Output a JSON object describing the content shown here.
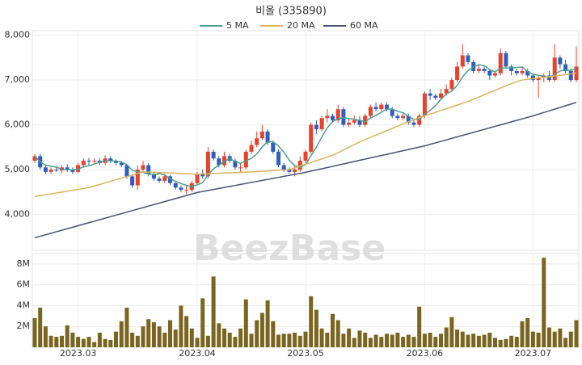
{
  "chart_data": [
    {
      "type": "candlestick",
      "title": "비올 (335890)",
      "watermark": "BeezBase",
      "up_color": "#e8412c",
      "down_color": "#2e5fbf",
      "ylim": [
        3200,
        8100
      ],
      "yticks": [
        {
          "value": 4000,
          "label": "4,000"
        },
        {
          "value": 5000,
          "label": "5,000"
        },
        {
          "value": 6000,
          "label": "6,000"
        },
        {
          "value": 7000,
          "label": "7,000"
        },
        {
          "value": 8000,
          "label": "8,000"
        }
      ],
      "open": [
        5200,
        5300,
        5050,
        4950,
        5000,
        4980,
        5050,
        5000,
        4950,
        5100,
        5200,
        5180,
        5200,
        5150,
        5250,
        5200,
        5150,
        5100,
        4850,
        4650,
        5000,
        5100,
        4900,
        4800,
        4750,
        4850,
        4700,
        4600,
        4550,
        4550,
        4700,
        4900,
        4850,
        5400,
        5250,
        5100,
        5300,
        5200,
        5050,
        5050,
        5400,
        5550,
        5700,
        5850,
        5600,
        5400,
        5100,
        5000,
        4950,
        5000,
        5200,
        5400,
        6000,
        5900,
        6150,
        6200,
        6100,
        6350,
        6000,
        6050,
        6100,
        6000,
        6200,
        6400,
        6350,
        6450,
        6350,
        6200,
        6150,
        6200,
        6050,
        6000,
        6200,
        6700,
        6650,
        6600,
        6700,
        6800,
        7000,
        7300,
        7550,
        7400,
        7200,
        7250,
        7200,
        7100,
        7150,
        7600,
        7300,
        7200,
        7150,
        7200,
        7100,
        7000,
        7050,
        7100,
        7000,
        7500,
        7350,
        7200,
        7000
      ],
      "high": [
        5350,
        5350,
        5100,
        5050,
        5080,
        5100,
        5120,
        5050,
        5150,
        5250,
        5260,
        5250,
        5260,
        5320,
        5300,
        5230,
        5200,
        5130,
        4900,
        5100,
        5200,
        5150,
        4950,
        4850,
        4900,
        4880,
        4750,
        4650,
        4650,
        4750,
        4950,
        5000,
        5500,
        5450,
        5300,
        5400,
        5350,
        5250,
        5150,
        5450,
        5650,
        5850,
        6000,
        5900,
        5650,
        5450,
        5150,
        5050,
        5100,
        5300,
        5450,
        6050,
        6100,
        6200,
        6350,
        6250,
        6450,
        6400,
        6150,
        6200,
        6200,
        6250,
        6450,
        6500,
        6500,
        6500,
        6400,
        6250,
        6250,
        6250,
        6100,
        6250,
        6750,
        6800,
        6700,
        6800,
        6900,
        7050,
        7400,
        7800,
        7600,
        7450,
        7350,
        7300,
        7250,
        7200,
        7700,
        7650,
        7350,
        7250,
        7300,
        7250,
        7150,
        7100,
        7150,
        7200,
        7800,
        7550,
        7450,
        7250,
        7750
      ],
      "low": [
        5150,
        5000,
        4900,
        4900,
        4950,
        4920,
        4950,
        4900,
        4920,
        5050,
        5100,
        5120,
        5100,
        5100,
        5150,
        5100,
        5050,
        4800,
        4600,
        4550,
        4950,
        4850,
        4750,
        4700,
        4700,
        4650,
        4550,
        4500,
        4450,
        4500,
        4650,
        4800,
        4800,
        5200,
        5050,
        5050,
        5150,
        5000,
        4950,
        5000,
        5350,
        5500,
        5650,
        5550,
        5350,
        5050,
        4950,
        4900,
        4850,
        4950,
        5150,
        5350,
        5800,
        5850,
        6050,
        6050,
        6050,
        5950,
        5950,
        6000,
        5950,
        5950,
        6150,
        6300,
        6300,
        6300,
        6150,
        6100,
        6100,
        6000,
        5950,
        5950,
        6150,
        6550,
        6550,
        6550,
        6650,
        6750,
        6950,
        7250,
        7350,
        7150,
        7150,
        7150,
        7000,
        7050,
        7100,
        7250,
        7100,
        7100,
        7100,
        7050,
        6950,
        6600,
        6950,
        6950,
        6950,
        7250,
        7150,
        6950,
        6950
      ],
      "close": [
        5300,
        5050,
        4950,
        5000,
        4980,
        5050,
        5000,
        4950,
        5100,
        5200,
        5180,
        5200,
        5150,
        5250,
        5200,
        5150,
        5100,
        4850,
        4650,
        5000,
        5100,
        4900,
        4800,
        4750,
        4850,
        4700,
        4600,
        4550,
        4550,
        4700,
        4900,
        4850,
        5400,
        5250,
        5100,
        5300,
        5200,
        5050,
        5050,
        5400,
        5550,
        5700,
        5850,
        5600,
        5400,
        5100,
        5000,
        4950,
        5000,
        5200,
        5400,
        6000,
        5900,
        6150,
        6200,
        6100,
        6350,
        6000,
        6050,
        6100,
        6000,
        6200,
        6400,
        6350,
        6450,
        6350,
        6200,
        6150,
        6200,
        6050,
        6000,
        6200,
        6700,
        6650,
        6600,
        6700,
        6800,
        7000,
        7300,
        7550,
        7400,
        7200,
        7250,
        7200,
        7100,
        7150,
        7600,
        7300,
        7200,
        7150,
        7200,
        7100,
        7000,
        7050,
        7100,
        7000,
        7500,
        7350,
        7200,
        7000,
        7300
      ],
      "series": [
        {
          "name": "5 MA",
          "color": "#4f9e8f",
          "values": [
            5300,
            5175,
            5100,
            5075,
            5056,
            5006,
            4996,
            4996,
            5016,
            5060,
            5086,
            5126,
            5166,
            5196,
            5196,
            5190,
            5170,
            5110,
            4990,
            4950,
            4940,
            4900,
            4890,
            4910,
            4880,
            4800,
            4740,
            4690,
            4650,
            4620,
            4660,
            4710,
            4880,
            5020,
            5100,
            5180,
            5250,
            5180,
            5140,
            5200,
            5250,
            5350,
            5510,
            5620,
            5620,
            5530,
            5390,
            5210,
            5090,
            5050,
            5110,
            5310,
            5500,
            5730,
            5930,
            6070,
            6140,
            6160,
            6140,
            6120,
            6100,
            6070,
            6150,
            6210,
            6280,
            6350,
            6350,
            6300,
            6270,
            6190,
            6120,
            6120,
            6230,
            6320,
            6430,
            6570,
            6690,
            6750,
            6880,
            7070,
            7210,
            7290,
            7340,
            7320,
            7230,
            7180,
            7260,
            7270,
            7270,
            7280,
            7290,
            7190,
            7130,
            7100,
            7090,
            7050,
            7130,
            7200,
            7230,
            7210,
            7270
          ]
        },
        {
          "name": "20 MA",
          "color": "#d9b45e",
          "values": [
            4400,
            4420,
            4440,
            4460,
            4480,
            4500,
            4520,
            4540,
            4560,
            4580,
            4600,
            4635,
            4670,
            4705,
            4740,
            4775,
            4810,
            4845,
            4880,
            4915,
            4950,
            4945,
            4940,
            4935,
            4930,
            4925,
            4920,
            4915,
            4910,
            4905,
            4900,
            4905,
            4910,
            4915,
            4920,
            4925,
            4930,
            4935,
            4940,
            4945,
            4950,
            4957,
            4964,
            4971,
            4979,
            4986,
            4993,
            5000,
            5040,
            5080,
            5120,
            5160,
            5200,
            5240,
            5280,
            5320,
            5380,
            5440,
            5500,
            5560,
            5620,
            5670,
            5720,
            5770,
            5820,
            5870,
            5920,
            5970,
            6020,
            6070,
            6120,
            6160,
            6200,
            6240,
            6280,
            6320,
            6360,
            6400,
            6440,
            6480,
            6520,
            6570,
            6620,
            6670,
            6720,
            6770,
            6820,
            6870,
            6920,
            6960,
            7000,
            7015,
            7030,
            7045,
            7060,
            7075,
            7090,
            7105,
            7120,
            7135,
            7150
          ]
        },
        {
          "name": "60 MA",
          "color": "#4a5275",
          "values": [
            3480,
            3514,
            3547,
            3581,
            3615,
            3648,
            3682,
            3716,
            3749,
            3783,
            3817,
            3850,
            3884,
            3918,
            3951,
            3985,
            4019,
            4052,
            4086,
            4120,
            4153,
            4187,
            4221,
            4254,
            4288,
            4322,
            4355,
            4389,
            4423,
            4456,
            4490,
            4512,
            4535,
            4557,
            4580,
            4602,
            4625,
            4647,
            4670,
            4692,
            4715,
            4737,
            4760,
            4782,
            4805,
            4827,
            4850,
            4872,
            4895,
            4917,
            4940,
            4967,
            4994,
            5020,
            5047,
            5074,
            5101,
            5128,
            5154,
            5181,
            5208,
            5235,
            5262,
            5289,
            5315,
            5342,
            5369,
            5396,
            5423,
            5449,
            5476,
            5503,
            5530,
            5564,
            5597,
            5631,
            5664,
            5698,
            5731,
            5765,
            5798,
            5832,
            5865,
            5899,
            5932,
            5966,
            5999,
            6033,
            6066,
            6100,
            6133,
            6167,
            6200,
            6238,
            6275,
            6313,
            6350,
            6388,
            6425,
            6463,
            6500
          ]
        }
      ]
    },
    {
      "type": "bar",
      "color": "#7a6520",
      "ylim": [
        0,
        9000000
      ],
      "yticks": [
        {
          "value": 2000000,
          "label": "2M"
        },
        {
          "value": 4000000,
          "label": "4M"
        },
        {
          "value": 6000000,
          "label": "6M"
        },
        {
          "value": 8000000,
          "label": "8M"
        }
      ],
      "xticks": [
        {
          "value": 8,
          "label": "2023.03"
        },
        {
          "value": 30,
          "label": "2023.04"
        },
        {
          "value": 50,
          "label": "2023.05"
        },
        {
          "value": 72,
          "label": "2023.06"
        },
        {
          "value": 92,
          "label": "2023.07"
        }
      ],
      "values": [
        2800000,
        3800000,
        2000000,
        1100000,
        1000000,
        1100000,
        2100000,
        1400000,
        1000000,
        800000,
        1000000,
        500000,
        1400000,
        800000,
        700000,
        1500000,
        2500000,
        3800000,
        1400000,
        1100000,
        2000000,
        2700000,
        2400000,
        2000000,
        1400000,
        2600000,
        1700000,
        4000000,
        3000000,
        1800000,
        900000,
        4700000,
        1100000,
        6800000,
        2300000,
        1800000,
        1400000,
        1000000,
        1800000,
        4600000,
        1300000,
        2600000,
        3300000,
        4500000,
        2500000,
        1200000,
        1300000,
        1300000,
        1400000,
        1100000,
        1500000,
        4900000,
        3600000,
        1800000,
        1400000,
        3200000,
        2600000,
        1300000,
        1800000,
        900000,
        1600000,
        1400000,
        900000,
        1200000,
        1000000,
        1300000,
        1200000,
        1400000,
        1000000,
        1200000,
        1000000,
        3900000,
        1300000,
        1400000,
        1000000,
        1300000,
        1900000,
        2900000,
        1700000,
        1500000,
        1200000,
        1300000,
        1100000,
        1200000,
        1400000,
        900000,
        700000,
        800000,
        1100000,
        1000000,
        2500000,
        2800000,
        1500000,
        1400000,
        8600000,
        1900000,
        1500000,
        1800000,
        900000,
        1500000,
        2600000
      ]
    }
  ]
}
